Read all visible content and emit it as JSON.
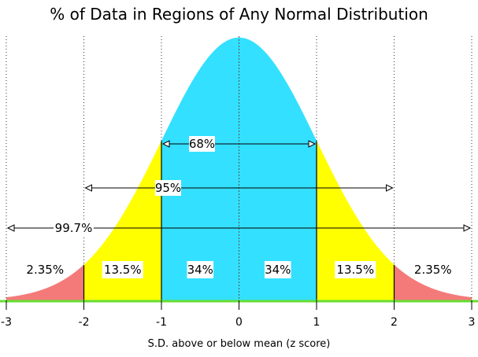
{
  "chart_data": {
    "type": "area",
    "title": "% of Data in Regions of Any Normal Distribution",
    "xlabel": "S.D. above or below mean (z score)",
    "ylabel": "",
    "xlim": [
      -3,
      3
    ],
    "x_ticks": [
      "-3",
      "-2",
      "-1",
      "0",
      "1",
      "2",
      "3"
    ],
    "legend": "none",
    "grid": "dotted vertical lines at each standard deviation",
    "regions": [
      {
        "from": -3,
        "to": -2,
        "label": "2.35%",
        "color": "#f47a7a"
      },
      {
        "from": -2,
        "to": -1,
        "label": "13.5%",
        "color": "#ffff00"
      },
      {
        "from": -1,
        "to": 0,
        "label": "34%",
        "color": "#33e0ff"
      },
      {
        "from": 0,
        "to": 1,
        "label": "34%",
        "color": "#33e0ff"
      },
      {
        "from": 1,
        "to": 2,
        "label": "13.5%",
        "color": "#ffff00"
      },
      {
        "from": 2,
        "to": 3,
        "label": "2.35%",
        "color": "#f47a7a"
      }
    ],
    "ranges": [
      {
        "from": -1,
        "to": 1,
        "label": "68%"
      },
      {
        "from": -2,
        "to": 2,
        "label": "95%"
      },
      {
        "from": -3,
        "to": 3,
        "label": "99.7%"
      }
    ],
    "baseline_color": "#66dd33"
  }
}
